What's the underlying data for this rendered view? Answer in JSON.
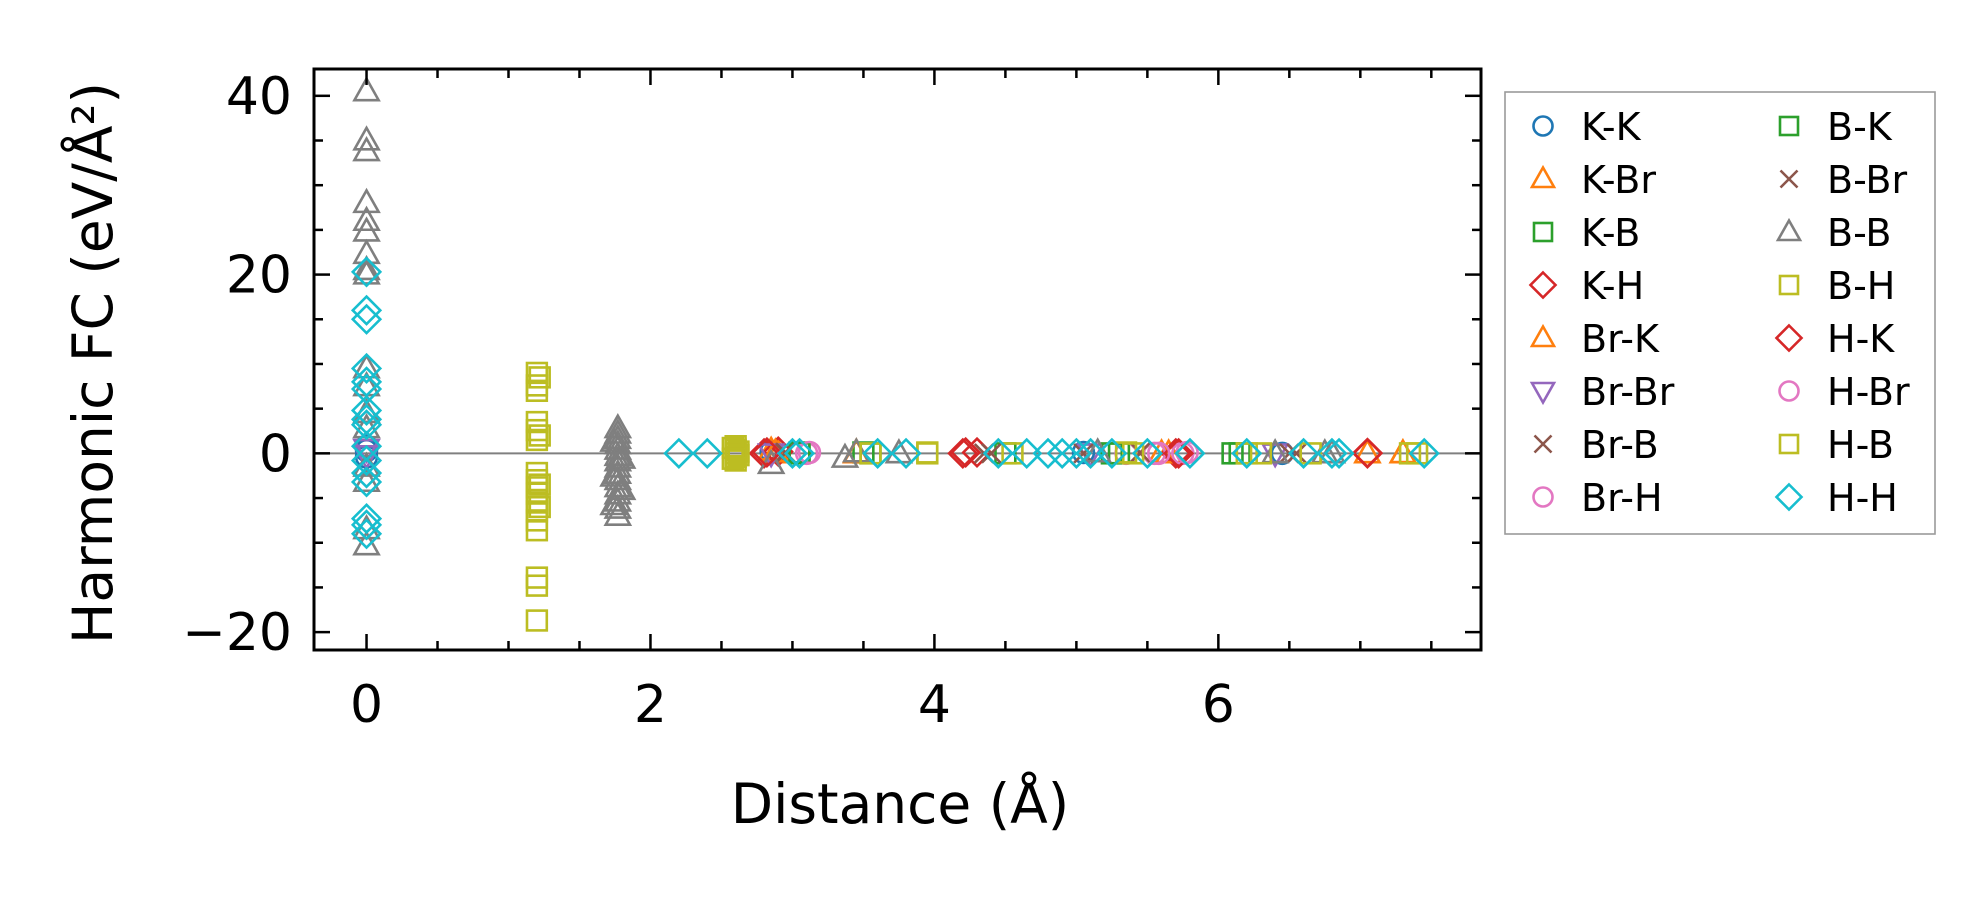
{
  "chart_data": {
    "type": "scatter",
    "title": "",
    "xlabel": "Distance (Å)",
    "ylabel": "Harmonic FC (eV/Å²)",
    "xlim": [
      -0.37,
      7.85
    ],
    "ylim": [
      -22,
      43
    ],
    "xticks": [
      0,
      2,
      4,
      6
    ],
    "xtick_labels": [
      "0",
      "2",
      "4",
      "6"
    ],
    "yticks": [
      -20,
      0,
      20,
      40
    ],
    "ytick_labels": [
      "−20",
      "0",
      "20",
      "40"
    ],
    "x_minor_step": 0.5,
    "y_minor_step": 5,
    "zero_line": true,
    "grid": false,
    "legend_position": "outside right, two columns",
    "series": [
      {
        "name": "K-K",
        "marker": "circle",
        "color": "#1f77b4",
        "points": [
          [
            0,
            0.8
          ],
          [
            0,
            0.3
          ],
          [
            0,
            -0.4
          ],
          [
            2.85,
            0.2
          ],
          [
            5.05,
            0.1
          ],
          [
            6.45,
            0.0
          ]
        ]
      },
      {
        "name": "K-Br",
        "marker": "triangle-up",
        "color": "#ff7f0e",
        "points": [
          [
            2.85,
            0.3
          ],
          [
            2.9,
            0.0
          ],
          [
            3.45,
            0.1
          ],
          [
            5.65,
            0.0
          ],
          [
            7.05,
            0.0
          ],
          [
            7.3,
            0.0
          ]
        ]
      },
      {
        "name": "K-B",
        "marker": "square",
        "color": "#2ca02c",
        "points": [
          [
            3.05,
            0.0
          ],
          [
            3.5,
            0.1
          ],
          [
            4.5,
            0.0
          ],
          [
            5.3,
            0.0
          ],
          [
            6.1,
            0.0
          ]
        ]
      },
      {
        "name": "K-H",
        "marker": "diamond",
        "color": "#d62728",
        "points": [
          [
            2.8,
            0.0
          ],
          [
            2.9,
            0.2
          ],
          [
            4.2,
            0.0
          ],
          [
            4.3,
            0.1
          ],
          [
            5.7,
            0.0
          ],
          [
            7.05,
            0.0
          ]
        ]
      },
      {
        "name": "Br-K",
        "marker": "triangle-up",
        "color": "#ff7f0e",
        "points": [
          [
            2.88,
            0.1
          ],
          [
            3.45,
            0.0
          ],
          [
            5.6,
            0.0
          ],
          [
            7.3,
            0.0
          ]
        ]
      },
      {
        "name": "Br-Br",
        "marker": "triangle-down",
        "color": "#9467bd",
        "points": [
          [
            0,
            0.5
          ],
          [
            0,
            -0.2
          ],
          [
            2.85,
            0.0
          ],
          [
            5.1,
            0.0
          ],
          [
            6.4,
            0.0
          ]
        ]
      },
      {
        "name": "Br-B",
        "marker": "x",
        "color": "#8c564b",
        "points": [
          [
            2.95,
            0.0
          ],
          [
            4.35,
            0.0
          ],
          [
            5.45,
            0.0
          ],
          [
            5.05,
            0.0
          ],
          [
            6.5,
            0.0
          ]
        ]
      },
      {
        "name": "Br-H",
        "marker": "circle",
        "color": "#e377c2",
        "points": [
          [
            3.1,
            0.0
          ],
          [
            5.35,
            0.0
          ],
          [
            5.55,
            0.0
          ],
          [
            5.75,
            0.0
          ]
        ]
      },
      {
        "name": "B-K",
        "marker": "square",
        "color": "#2ca02c",
        "points": [
          [
            3.05,
            0.1
          ],
          [
            3.55,
            0.0
          ],
          [
            5.25,
            0.0
          ],
          [
            6.15,
            0.0
          ]
        ]
      },
      {
        "name": "B-Br",
        "marker": "x",
        "color": "#8c564b",
        "points": [
          [
            2.95,
            0.1
          ],
          [
            4.4,
            0.0
          ],
          [
            5.45,
            0.1
          ],
          [
            6.55,
            0.0
          ]
        ]
      },
      {
        "name": "B-B",
        "marker": "triangle-up",
        "color": "#7f7f7f",
        "points": [
          [
            0,
            40.5
          ],
          [
            0,
            35.0
          ],
          [
            0,
            33.8
          ],
          [
            0,
            28.0
          ],
          [
            0,
            26.0
          ],
          [
            0,
            24.8
          ],
          [
            0,
            22.3
          ],
          [
            0,
            20.5
          ],
          [
            0,
            20.0
          ],
          [
            0,
            9.5
          ],
          [
            0,
            7.5
          ],
          [
            0,
            4.5
          ],
          [
            0,
            2.8
          ],
          [
            0,
            -1.5
          ],
          [
            0,
            -3.2
          ],
          [
            0,
            -8.5
          ],
          [
            0,
            -10.3
          ],
          [
            1.77,
            2.8
          ],
          [
            1.77,
            2.2
          ],
          [
            1.77,
            1.6
          ],
          [
            1.77,
            1.0
          ],
          [
            1.77,
            0.4
          ],
          [
            1.77,
            -0.3
          ],
          [
            1.77,
            -0.9
          ],
          [
            1.77,
            -1.6
          ],
          [
            1.77,
            -2.3
          ],
          [
            1.77,
            -3.0
          ],
          [
            1.77,
            -3.8
          ],
          [
            1.77,
            -4.6
          ],
          [
            1.77,
            -5.4
          ],
          [
            1.77,
            -6.2
          ],
          [
            1.77,
            -7.0
          ],
          [
            1.74,
            1.3
          ],
          [
            1.8,
            -0.6
          ],
          [
            1.74,
            -2.6
          ],
          [
            1.8,
            -4.1
          ],
          [
            1.74,
            -5.8
          ],
          [
            2.85,
            -1.2
          ],
          [
            3.37,
            -0.5
          ],
          [
            3.45,
            0.1
          ],
          [
            3.75,
            0.0
          ],
          [
            5.15,
            0.1
          ],
          [
            6.4,
            0.0
          ],
          [
            6.75,
            0.0
          ],
          [
            6.8,
            0.0
          ]
        ]
      },
      {
        "name": "B-H",
        "marker": "square",
        "color": "#bcbd22",
        "points": [
          [
            1.2,
            9.0
          ],
          [
            1.2,
            7.6
          ],
          [
            1.2,
            7.0
          ],
          [
            1.2,
            3.5
          ],
          [
            1.2,
            2.6
          ],
          [
            1.2,
            1.5
          ],
          [
            1.2,
            -2.2
          ],
          [
            1.2,
            -3.0
          ],
          [
            1.2,
            -3.8
          ],
          [
            1.2,
            -4.5
          ],
          [
            1.2,
            -5.5
          ],
          [
            1.2,
            -6.5
          ],
          [
            1.2,
            -7.5
          ],
          [
            1.2,
            -8.6
          ],
          [
            1.2,
            -13.9
          ],
          [
            1.2,
            -14.8
          ],
          [
            1.2,
            -18.7
          ],
          [
            2.6,
            0.8
          ],
          [
            2.6,
            0.4
          ],
          [
            2.6,
            0.0
          ],
          [
            2.6,
            -0.4
          ],
          [
            2.6,
            -0.8
          ],
          [
            2.62,
            0.2
          ],
          [
            2.62,
            -0.2
          ],
          [
            3.55,
            0.0
          ],
          [
            3.95,
            0.0
          ],
          [
            4.55,
            0.0
          ],
          [
            5.4,
            0.0
          ],
          [
            6.2,
            0.0
          ],
          [
            6.65,
            0.0
          ],
          [
            7.4,
            0.0
          ]
        ]
      },
      {
        "name": "H-K",
        "marker": "diamond",
        "color": "#d62728",
        "points": [
          [
            2.82,
            0.1
          ],
          [
            4.22,
            0.1
          ],
          [
            5.72,
            0.0
          ],
          [
            7.05,
            0.05
          ]
        ]
      },
      {
        "name": "H-Br",
        "marker": "circle",
        "color": "#e377c2",
        "points": [
          [
            3.12,
            0.1
          ],
          [
            5.58,
            0.0
          ],
          [
            5.78,
            0.1
          ]
        ]
      },
      {
        "name": "H-B",
        "marker": "square",
        "color": "#bcbd22",
        "points": [
          [
            1.22,
            8.5
          ],
          [
            1.22,
            2.0
          ],
          [
            1.22,
            -3.5
          ],
          [
            1.22,
            -6.0
          ],
          [
            2.58,
            0.6
          ],
          [
            2.58,
            -0.6
          ],
          [
            3.95,
            0.1
          ],
          [
            5.35,
            0.1
          ],
          [
            6.3,
            0.0
          ],
          [
            7.35,
            0.0
          ]
        ]
      },
      {
        "name": "H-H",
        "marker": "diamond",
        "color": "#17becf",
        "points": [
          [
            0,
            20.3
          ],
          [
            0,
            16.0
          ],
          [
            0,
            15.0
          ],
          [
            0,
            9.5
          ],
          [
            0,
            8.0
          ],
          [
            0,
            7.2
          ],
          [
            0,
            4.8
          ],
          [
            0,
            3.8
          ],
          [
            0,
            3.2
          ],
          [
            0,
            0.8
          ],
          [
            0,
            -0.8
          ],
          [
            0,
            -2.2
          ],
          [
            0,
            -3.2
          ],
          [
            0,
            -7.3
          ],
          [
            0,
            -8.0
          ],
          [
            0,
            -9.0
          ],
          [
            2.2,
            0.0
          ],
          [
            2.4,
            0.0
          ],
          [
            3.0,
            0.0
          ],
          [
            3.05,
            0.0
          ],
          [
            3.6,
            0.0
          ],
          [
            3.8,
            0.0
          ],
          [
            4.45,
            0.0
          ],
          [
            4.65,
            0.0
          ],
          [
            4.8,
            0.0
          ],
          [
            4.9,
            0.0
          ],
          [
            5.0,
            0.0
          ],
          [
            5.1,
            0.0
          ],
          [
            5.25,
            0.0
          ],
          [
            5.5,
            0.0
          ],
          [
            5.8,
            0.0
          ],
          [
            6.2,
            0.0
          ],
          [
            6.6,
            0.0
          ],
          [
            6.8,
            0.0
          ],
          [
            6.85,
            0.0
          ],
          [
            7.45,
            0.0
          ]
        ]
      }
    ]
  }
}
